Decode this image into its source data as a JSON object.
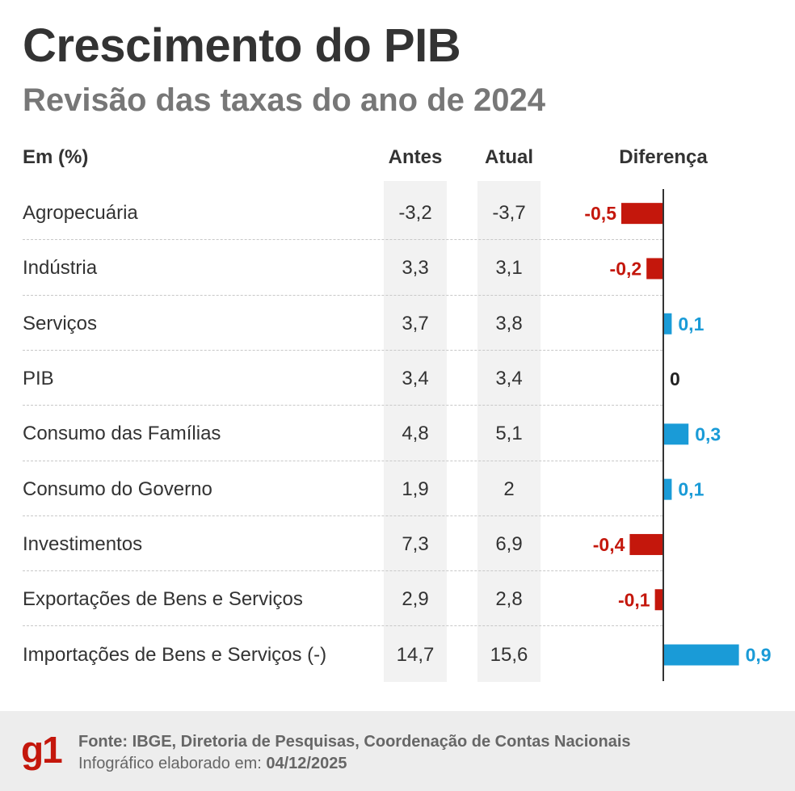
{
  "title": "Crescimento do PIB",
  "subtitle": "Revisão das taxas do ano de 2024",
  "table": {
    "header_label": "Em (%)",
    "header_antes": "Antes",
    "header_atual": "Atual",
    "header_diff": "Diferença"
  },
  "chart_data": {
    "type": "bar",
    "title": "Crescimento do PIB",
    "subtitle": "Revisão das taxas do ano de 2024",
    "unit": "%",
    "categories": [
      "Agropecuária",
      "Indústria",
      "Serviços",
      "PIB",
      "Consumo das Famílias",
      "Consumo do Governo",
      "Investimentos",
      "Exportações de Bens e Serviços",
      "Importações de Bens e Serviços (-)"
    ],
    "antes": [
      "-3,2",
      "3,3",
      "3,7",
      "3,4",
      "4,8",
      "1,9",
      "7,3",
      "2,9",
      "14,7"
    ],
    "atual": [
      "-3,7",
      "3,1",
      "3,8",
      "3,4",
      "5,1",
      "2",
      "6,9",
      "2,8",
      "15,6"
    ],
    "series": [
      {
        "name": "Diferença",
        "values": [
          -0.5,
          -0.2,
          0.1,
          0,
          0.3,
          0.1,
          -0.4,
          -0.1,
          0.9
        ]
      }
    ],
    "value_labels": [
      "-0,5",
      "-0,2",
      "0,1",
      "0",
      "0,3",
      "0,1",
      "-0,4",
      "-0,1",
      "0,9"
    ],
    "xlim": [
      -0.5,
      0.9
    ],
    "orientation": "horizontal",
    "colors": {
      "negative": "#c4170c",
      "positive": "#1a9bd7",
      "zero": "#222222",
      "axis": "#333333"
    }
  },
  "footer": {
    "logo": "g1",
    "source": "Fonte: IBGE, Diretoria de Pesquisas, Coordenação de Contas Nacionais",
    "date_prefix": "Infográfico elaborado em: ",
    "date": "04/12/2025"
  }
}
